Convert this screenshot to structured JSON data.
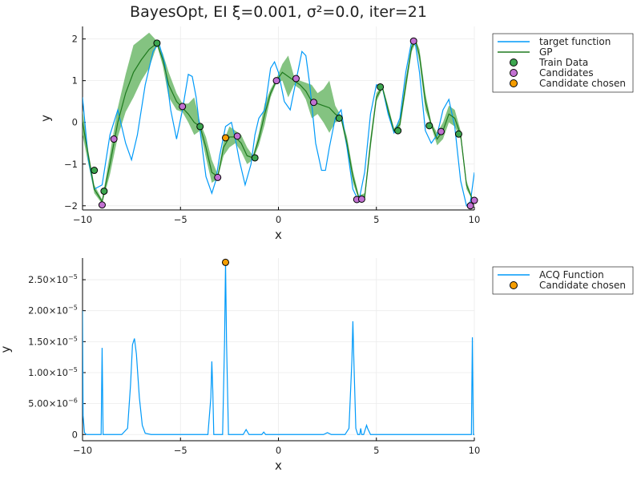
{
  "colors": {
    "target": "#009AF9",
    "gp": "#1E7A1E",
    "band": "#6FB86B",
    "train": "#3DA64F",
    "candidates": "#C271D2",
    "chosen": "#F59D00",
    "acq": "#009AF9",
    "axis": "#000000",
    "grid": "#EBEBEB"
  },
  "chart_data": [
    {
      "type": "line",
      "title": "BayesOpt, EI ξ=0.001, σ²=0.0, iter=21",
      "xlabel": "x",
      "ylabel": "y",
      "xlim": [
        -10,
        10
      ],
      "ylim": [
        -2.1,
        2.3
      ],
      "xticks": [
        -10,
        -5,
        0,
        5,
        10
      ],
      "xtick_labels": [
        "−10",
        "−5",
        "0",
        "5",
        "10"
      ],
      "yticks": [
        -2,
        -1,
        0,
        1,
        2
      ],
      "ytick_labels": [
        "−2",
        "−1",
        "0",
        "1",
        "2"
      ],
      "grid": true,
      "legend_position": "outside-top-right",
      "legend": [
        "target function",
        "GP",
        "Train Data",
        "Candidates",
        "Candidate chosen"
      ],
      "target_function": {
        "x": [
          -10,
          -9.7,
          -9.4,
          -9.0,
          -8.6,
          -8.2,
          -7.8,
          -7.5,
          -7.2,
          -6.8,
          -6.4,
          -6.1,
          -5.8,
          -5.5,
          -5.2,
          -4.9,
          -4.6,
          -4.4,
          -4.2,
          -4.0,
          -3.7,
          -3.4,
          -3.2,
          -3.0,
          -2.7,
          -2.4,
          -2.2,
          -2.0,
          -1.7,
          -1.4,
          -1.2,
          -1.0,
          -0.7,
          -0.4,
          -0.2,
          0.0,
          0.3,
          0.6,
          0.9,
          1.2,
          1.4,
          1.6,
          1.9,
          2.2,
          2.4,
          2.6,
          2.9,
          3.2,
          3.5,
          3.8,
          4.1,
          4.4,
          4.7,
          5.0,
          5.3,
          5.6,
          5.9,
          6.2,
          6.5,
          6.8,
          7.0,
          7.2,
          7.5,
          7.8,
          8.1,
          8.4,
          8.7,
          9.0,
          9.3,
          9.6,
          9.8,
          10.0
        ],
        "y": [
          0.6,
          -0.9,
          -1.6,
          -1.5,
          -0.3,
          0.3,
          -0.5,
          -0.9,
          -0.3,
          0.9,
          1.7,
          1.9,
          1.4,
          0.3,
          -0.4,
          0.3,
          1.15,
          1.1,
          0.6,
          -0.2,
          -1.3,
          -1.7,
          -1.4,
          -0.8,
          -0.1,
          0.0,
          -0.4,
          -0.9,
          -1.5,
          -1.0,
          -0.3,
          0.1,
          0.3,
          1.3,
          1.45,
          1.2,
          0.5,
          0.3,
          1.0,
          1.7,
          1.6,
          0.9,
          -0.5,
          -1.15,
          -1.15,
          -0.6,
          0.1,
          0.3,
          -0.6,
          -1.6,
          -1.9,
          -1.2,
          0.2,
          0.9,
          0.85,
          0.2,
          -0.25,
          0.1,
          1.2,
          1.95,
          1.85,
          1.2,
          -0.2,
          -0.5,
          -0.3,
          0.3,
          0.55,
          -0.1,
          -1.4,
          -2.0,
          -1.9,
          -1.2
        ]
      },
      "gp_mean": {
        "x": [
          -10,
          -9.7,
          -9.4,
          -9.0,
          -8.6,
          -8.2,
          -7.8,
          -7.4,
          -7.0,
          -6.6,
          -6.2,
          -5.9,
          -5.6,
          -5.2,
          -4.9,
          -4.6,
          -4.3,
          -4.0,
          -3.7,
          -3.4,
          -3.1,
          -2.8,
          -2.5,
          -2.2,
          -1.9,
          -1.6,
          -1.3,
          -1.0,
          -0.7,
          -0.4,
          -0.1,
          0.2,
          0.5,
          0.8,
          1.1,
          1.4,
          1.7,
          2.0,
          2.3,
          2.6,
          2.9,
          3.2,
          3.5,
          3.8,
          4.1,
          4.4,
          4.7,
          5.0,
          5.3,
          5.6,
          5.9,
          6.2,
          6.5,
          6.8,
          7.0,
          7.2,
          7.5,
          7.8,
          8.1,
          8.4,
          8.7,
          9.0,
          9.3,
          9.6,
          10.0
        ],
        "y": [
          0.0,
          -0.8,
          -1.6,
          -1.9,
          -1.0,
          0.0,
          0.7,
          1.2,
          1.5,
          1.75,
          1.9,
          1.5,
          0.9,
          0.5,
          0.35,
          0.2,
          0.0,
          -0.1,
          -0.6,
          -1.2,
          -1.3,
          -0.6,
          -0.35,
          -0.35,
          -0.5,
          -0.8,
          -0.85,
          -0.4,
          0.2,
          0.7,
          1.0,
          1.2,
          1.1,
          1.0,
          0.9,
          0.75,
          0.5,
          0.45,
          0.4,
          0.35,
          0.2,
          0.1,
          -0.5,
          -1.3,
          -1.8,
          -1.8,
          -0.5,
          0.6,
          0.85,
          0.3,
          -0.2,
          -0.05,
          0.9,
          1.8,
          1.95,
          1.6,
          0.5,
          -0.05,
          -0.4,
          -0.2,
          0.2,
          0.1,
          -0.3,
          -1.5,
          -1.95
        ]
      },
      "gp_band": {
        "x": [
          -10,
          -9.7,
          -9.4,
          -9.0,
          -8.6,
          -8.2,
          -7.8,
          -7.4,
          -7.0,
          -6.6,
          -6.2,
          -5.9,
          -5.6,
          -5.2,
          -4.9,
          -4.6,
          -4.3,
          -4.0,
          -3.7,
          -3.4,
          -3.1,
          -2.8,
          -2.5,
          -2.2,
          -1.9,
          -1.6,
          -1.3,
          -1.0,
          -0.7,
          -0.4,
          -0.1,
          0.2,
          0.5,
          0.8,
          1.1,
          1.4,
          1.7,
          2.0,
          2.3,
          2.6,
          2.9,
          3.2,
          3.5,
          3.8,
          4.1,
          4.4,
          4.7,
          5.0,
          5.3,
          5.6,
          5.9,
          6.2,
          6.5,
          6.8,
          7.0,
          7.2,
          7.5,
          7.8,
          8.1,
          8.4,
          8.7,
          9.0,
          9.3,
          9.6,
          10.0
        ],
        "upper": [
          0.3,
          -0.7,
          -1.5,
          -1.85,
          -0.75,
          0.35,
          1.15,
          1.85,
          2.0,
          2.15,
          1.95,
          1.65,
          1.2,
          0.7,
          0.45,
          0.45,
          0.6,
          0.0,
          -0.35,
          -0.9,
          -1.25,
          -0.45,
          -0.1,
          -0.2,
          -0.3,
          -0.6,
          -0.8,
          -0.25,
          0.45,
          0.8,
          1.05,
          1.4,
          1.6,
          1.1,
          1.0,
          0.95,
          0.9,
          0.7,
          0.8,
          1.0,
          0.4,
          0.15,
          -0.35,
          -1.15,
          -1.75,
          -1.7,
          -0.35,
          0.7,
          0.9,
          0.4,
          -0.15,
          0.05,
          1.05,
          1.9,
          2.0,
          1.75,
          0.7,
          0.0,
          -0.25,
          0.0,
          0.4,
          0.3,
          -0.2,
          -1.4,
          -1.95
        ],
        "lower": [
          -0.3,
          -1.0,
          -1.7,
          -1.95,
          -1.25,
          -0.35,
          0.25,
          0.6,
          1.0,
          1.3,
          1.85,
          1.35,
          0.6,
          0.3,
          0.25,
          0.0,
          -0.3,
          -0.2,
          -0.85,
          -1.45,
          -1.35,
          -0.8,
          -0.6,
          -0.5,
          -0.7,
          -1.0,
          -0.9,
          -0.55,
          -0.05,
          0.6,
          0.95,
          1.0,
          0.6,
          0.9,
          0.8,
          0.55,
          0.1,
          0.2,
          0.0,
          -0.25,
          0.0,
          0.05,
          -0.65,
          -1.45,
          -1.85,
          -1.9,
          -0.65,
          0.5,
          0.8,
          0.2,
          -0.25,
          -0.15,
          0.75,
          1.7,
          1.9,
          1.45,
          0.3,
          -0.1,
          -0.55,
          -0.4,
          0.0,
          -0.1,
          -0.4,
          -1.6,
          -1.95
        ]
      },
      "train_data": {
        "x": [
          -9.4,
          -8.9,
          -6.2,
          -4.0,
          3.1,
          5.2,
          6.1,
          7.7,
          9.2,
          -1.2
        ],
        "y": [
          -1.15,
          -1.65,
          1.9,
          -0.1,
          0.1,
          0.85,
          -0.2,
          -0.08,
          -0.28,
          -0.85
        ]
      },
      "candidates": {
        "x": [
          -9.0,
          -8.4,
          -4.9,
          -3.1,
          -2.1,
          -0.1,
          0.9,
          1.8,
          4.0,
          4.25,
          6.9,
          8.3,
          9.8,
          10.0
        ],
        "y": [
          -1.98,
          -0.4,
          0.38,
          -1.32,
          -0.33,
          1.0,
          1.05,
          0.48,
          -1.85,
          -1.84,
          1.95,
          -0.22,
          -2.0,
          -1.87
        ]
      },
      "candidate_chosen": {
        "x": -2.7,
        "y": -0.37
      }
    },
    {
      "type": "line",
      "title": "",
      "xlabel": "x",
      "ylabel": "y",
      "xlim": [
        -10,
        10
      ],
      "ylim": [
        -1e-06,
        2.85e-05
      ],
      "xticks": [
        -10,
        -5,
        0,
        5,
        10
      ],
      "xtick_labels": [
        "−10",
        "−5",
        "0",
        "5",
        "10"
      ],
      "yticks": [
        0,
        5e-06,
        1e-05,
        1.5e-05,
        2e-05,
        2.5e-05
      ],
      "ytick_labels": [
        "0",
        "5.00×10",
        "1.00×10",
        "1.50×10",
        "2.00×10",
        "2.50×10"
      ],
      "ytick_exponents": [
        "",
        "−6",
        "−5",
        "−5",
        "−5",
        "−5"
      ],
      "grid": true,
      "legend_position": "outside-top-right",
      "legend": [
        "ACQ Function",
        "Candidate chosen"
      ],
      "acq_function": {
        "x": [
          -10.0,
          -9.97,
          -9.9,
          -9.8,
          -9.2,
          -9.05,
          -9.0,
          -8.95,
          -8.8,
          -8.0,
          -7.7,
          -7.55,
          -7.45,
          -7.35,
          -7.25,
          -7.1,
          -6.95,
          -6.8,
          -6.5,
          -5.0,
          -3.6,
          -3.45,
          -3.4,
          -3.35,
          -3.3,
          -3.1,
          -2.85,
          -2.75,
          -2.7,
          -2.65,
          -2.55,
          -2.3,
          -1.8,
          -1.65,
          -1.5,
          -1.3,
          -0.85,
          -0.75,
          -0.65,
          0.0,
          2.3,
          2.5,
          2.7,
          3.4,
          3.6,
          3.75,
          3.8,
          3.85,
          3.95,
          4.05,
          4.15,
          4.2,
          4.25,
          4.35,
          4.45,
          4.5,
          4.55,
          4.7,
          5.5,
          9.7,
          9.85,
          9.9,
          9.95,
          10.0
        ],
        "y": [
          2e-05,
          3e-06,
          3e-07,
          0,
          0,
          0,
          1.4e-05,
          0,
          0,
          0,
          1e-06,
          8e-06,
          1.45e-05,
          1.55e-05,
          1.3e-05,
          6e-06,
          1.5e-06,
          2e-07,
          0,
          0,
          0,
          6e-06,
          1.18e-05,
          7e-06,
          0,
          0,
          0,
          1.5e-05,
          2.78e-05,
          1.5e-05,
          0,
          0,
          0,
          8e-07,
          0,
          0,
          0,
          4e-07,
          0,
          0,
          0,
          3e-07,
          0,
          0,
          1e-06,
          1.2e-05,
          1.83e-05,
          1.2e-05,
          1e-06,
          0,
          0,
          1e-06,
          0,
          0,
          1e-06,
          1.5e-06,
          1e-06,
          0,
          0,
          0,
          0,
          1.57e-05,
          0,
          0
        ]
      },
      "candidate_chosen": {
        "x": -2.7,
        "y": 2.78e-05
      }
    }
  ]
}
